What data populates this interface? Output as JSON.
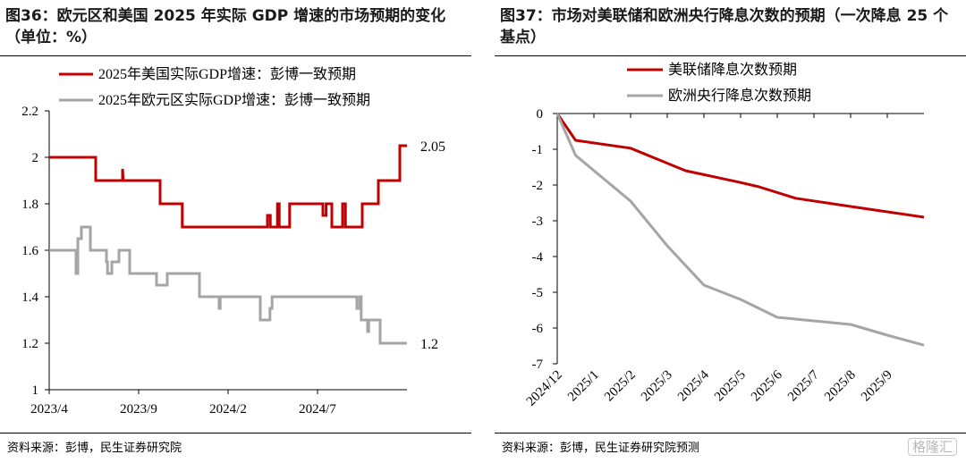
{
  "left": {
    "title": "图36：欧元区和美国 2025 年实际 GDP 增速的市场预期的变化（单位：%）",
    "source": "资料来源：彭博，民生证券研究院"
  },
  "right": {
    "title": "图37：市场对美联储和欧洲央行降息次数的预期（一次降息 25 个基点）",
    "source": "资料来源：彭博，民生证券研究院预测"
  },
  "watermark": "格隆汇",
  "colors": {
    "red": "#c00000",
    "gray": "#a5a5a5"
  },
  "chart_data": [
    {
      "type": "line",
      "step": true,
      "x_ticks": [
        "2023/4",
        "2023/9",
        "2024/2",
        "2024/7"
      ],
      "y_ticks": [
        "1",
        "1.2",
        "1.4",
        "1.6",
        "1.8",
        "2",
        "2.2"
      ],
      "ylim": [
        1,
        2.2
      ],
      "x_range": [
        "2023-04",
        "2024-12"
      ],
      "legend_position": "top",
      "series": [
        {
          "name": "2025年美国实际GDP增速：彭博一致预期",
          "color": "#c00000",
          "end_label": "2.05",
          "points": [
            [
              0.0,
              2.0
            ],
            [
              0.13,
              2.0
            ],
            [
              0.13,
              1.9
            ],
            [
              0.205,
              1.9
            ],
            [
              0.205,
              1.95
            ],
            [
              0.207,
              1.9
            ],
            [
              0.31,
              1.9
            ],
            [
              0.31,
              1.8
            ],
            [
              0.372,
              1.8
            ],
            [
              0.372,
              1.7
            ],
            [
              0.61,
              1.7
            ],
            [
              0.61,
              1.75
            ],
            [
              0.618,
              1.75
            ],
            [
              0.618,
              1.7
            ],
            [
              0.638,
              1.7
            ],
            [
              0.638,
              1.8
            ],
            [
              0.643,
              1.8
            ],
            [
              0.643,
              1.7
            ],
            [
              0.672,
              1.7
            ],
            [
              0.672,
              1.8
            ],
            [
              0.765,
              1.8
            ],
            [
              0.765,
              1.75
            ],
            [
              0.774,
              1.75
            ],
            [
              0.774,
              1.8
            ],
            [
              0.79,
              1.8
            ],
            [
              0.79,
              1.7
            ],
            [
              0.82,
              1.7
            ],
            [
              0.82,
              1.8
            ],
            [
              0.828,
              1.8
            ],
            [
              0.828,
              1.7
            ],
            [
              0.875,
              1.7
            ],
            [
              0.875,
              1.8
            ],
            [
              0.92,
              1.8
            ],
            [
              0.92,
              1.9
            ],
            [
              0.98,
              1.9
            ],
            [
              0.98,
              2.05
            ],
            [
              1.0,
              2.05
            ]
          ]
        },
        {
          "name": "2025年欧元区实际GDP增速：彭博一致预期",
          "color": "#a5a5a5",
          "end_label": "1.2",
          "points": [
            [
              0.0,
              1.6
            ],
            [
              0.075,
              1.6
            ],
            [
              0.075,
              1.5
            ],
            [
              0.08,
              1.5
            ],
            [
              0.08,
              1.65
            ],
            [
              0.09,
              1.65
            ],
            [
              0.09,
              1.7
            ],
            [
              0.115,
              1.7
            ],
            [
              0.115,
              1.6
            ],
            [
              0.16,
              1.6
            ],
            [
              0.16,
              1.55
            ],
            [
              0.163,
              1.55
            ],
            [
              0.163,
              1.5
            ],
            [
              0.175,
              1.5
            ],
            [
              0.175,
              1.55
            ],
            [
              0.195,
              1.55
            ],
            [
              0.195,
              1.6
            ],
            [
              0.225,
              1.6
            ],
            [
              0.225,
              1.5
            ],
            [
              0.3,
              1.5
            ],
            [
              0.3,
              1.45
            ],
            [
              0.33,
              1.45
            ],
            [
              0.33,
              1.5
            ],
            [
              0.42,
              1.5
            ],
            [
              0.42,
              1.4
            ],
            [
              0.475,
              1.4
            ],
            [
              0.475,
              1.35
            ],
            [
              0.478,
              1.35
            ],
            [
              0.478,
              1.4
            ],
            [
              0.59,
              1.4
            ],
            [
              0.59,
              1.3
            ],
            [
              0.617,
              1.3
            ],
            [
              0.617,
              1.35
            ],
            [
              0.623,
              1.35
            ],
            [
              0.623,
              1.4
            ],
            [
              0.86,
              1.4
            ],
            [
              0.86,
              1.35
            ],
            [
              0.868,
              1.35
            ],
            [
              0.868,
              1.4
            ],
            [
              0.872,
              1.4
            ],
            [
              0.872,
              1.3
            ],
            [
              0.89,
              1.3
            ],
            [
              0.89,
              1.25
            ],
            [
              0.893,
              1.25
            ],
            [
              0.893,
              1.3
            ],
            [
              0.925,
              1.3
            ],
            [
              0.925,
              1.2
            ],
            [
              1.0,
              1.2
            ]
          ]
        }
      ]
    },
    {
      "type": "line",
      "categories": [
        "2024/12",
        "2025/1",
        "2025/2",
        "2025/3",
        "2025/4",
        "2025/5",
        "2025/6",
        "2025/7",
        "2025/8",
        "2025/9"
      ],
      "y_ticks": [
        "0",
        "-1",
        "-2",
        "-3",
        "-4",
        "-5",
        "-6",
        "-7"
      ],
      "ylim": [
        -7,
        0
      ],
      "legend_position": "top",
      "series": [
        {
          "name": "美联储降息次数预期",
          "color": "#c00000",
          "x": [
            0,
            0.5,
            2,
            3.5,
            5,
            5.5,
            6.5,
            8,
            9,
            10
          ],
          "values": [
            0,
            -0.75,
            -0.97,
            -1.6,
            -1.93,
            -2.05,
            -2.37,
            -2.6,
            -2.75,
            -2.9
          ]
        },
        {
          "name": "欧洲央行降息次数预期",
          "color": "#a5a5a5",
          "x": [
            0,
            0.5,
            2,
            3,
            4,
            5,
            6,
            7,
            8,
            9,
            10
          ],
          "values": [
            0,
            -1.17,
            -2.45,
            -3.7,
            -4.8,
            -5.2,
            -5.7,
            -5.8,
            -5.9,
            -6.2,
            -6.48
          ]
        }
      ]
    }
  ]
}
